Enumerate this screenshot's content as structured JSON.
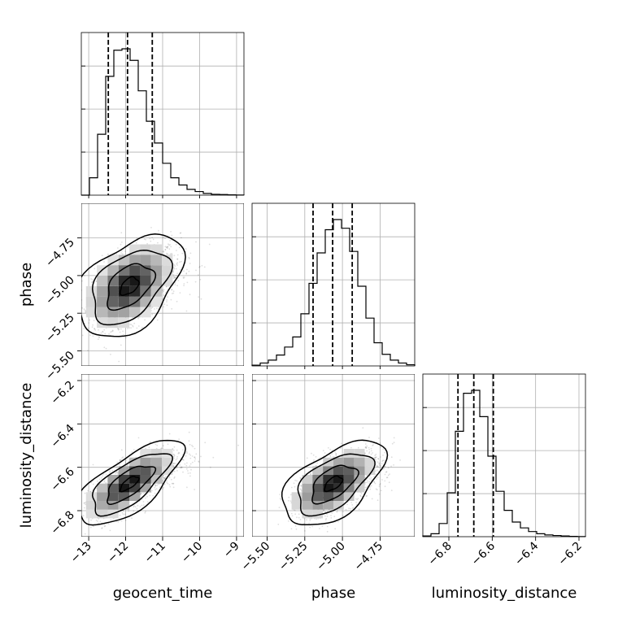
{
  "chart_data": {
    "type": "corner",
    "parameters": [
      "geocent_time",
      "phase",
      "luminosity_distance"
    ],
    "axis_labels": {
      "x": [
        "geocent_time",
        "phase",
        "luminosity_distance"
      ],
      "y": [
        "phase",
        "luminosity_distance"
      ]
    },
    "grid": true,
    "ranges": {
      "geocent_time": [
        -13.2,
        -8.8
      ],
      "phase": [
        -5.6,
        -4.52
      ],
      "luminosity_distance": [
        -6.92,
        -6.17
      ]
    },
    "ticks": {
      "geocent_time": {
        "values": [
          -13,
          -12,
          -11,
          -10,
          -9
        ],
        "labels": [
          "−13",
          "−12",
          "−11",
          "−10",
          "−9"
        ]
      },
      "phase": {
        "values": [
          -5.5,
          -5.25,
          -5.0,
          -4.75
        ],
        "labels": [
          "−5.50",
          "−5.25",
          "−5.00",
          "−4.75"
        ]
      },
      "luminosity_distance": {
        "values": [
          -6.8,
          -6.6,
          -6.4,
          -6.2
        ],
        "labels": [
          "−6.8",
          "−6.6",
          "−6.4",
          "−6.2"
        ]
      }
    },
    "quantiles": {
      "geocent_time": [
        -12.47,
        -11.95,
        -11.28
      ],
      "phase": [
        -5.195,
        -5.065,
        -4.935
      ],
      "luminosity_distance": [
        -6.758,
        -6.685,
        -6.595
      ]
    },
    "histograms": {
      "geocent_time": {
        "edges": [
          -13.2,
          -8.8
        ],
        "counts": [
          0,
          0.12,
          0.42,
          0.82,
          1.0,
          1.01,
          0.93,
          0.72,
          0.51,
          0.36,
          0.22,
          0.12,
          0.07,
          0.04,
          0.025,
          0.012,
          0.006,
          0.004,
          0.002,
          0.001
        ]
      },
      "phase": {
        "edges": [
          -5.6,
          -4.52
        ],
        "counts": [
          0.005,
          0.02,
          0.04,
          0.075,
          0.13,
          0.2,
          0.36,
          0.57,
          0.78,
          0.94,
          1.01,
          0.95,
          0.79,
          0.55,
          0.33,
          0.16,
          0.08,
          0.04,
          0.02,
          0.008
        ]
      },
      "luminosity_distance": {
        "edges": [
          -6.92,
          -6.17
        ],
        "counts": [
          0.005,
          0.02,
          0.09,
          0.3,
          0.72,
          0.98,
          1.0,
          0.82,
          0.55,
          0.31,
          0.18,
          0.1,
          0.06,
          0.035,
          0.02,
          0.012,
          0.008,
          0.005,
          0.002,
          0.001
        ]
      }
    },
    "scatter_panels": [
      {
        "x": "geocent_time",
        "y": "phase",
        "mean": [
          -11.9,
          -5.07
        ],
        "sd": [
          0.55,
          0.13
        ],
        "rho": 0.45
      },
      {
        "x": "geocent_time",
        "y": "luminosity_distance",
        "mean": [
          -11.9,
          -6.675
        ],
        "sd": [
          0.55,
          0.075
        ],
        "rho": 0.7
      },
      {
        "x": "phase",
        "y": "luminosity_distance",
        "mean": [
          -5.06,
          -6.675
        ],
        "sd": [
          0.13,
          0.075
        ],
        "rho": 0.55
      }
    ]
  }
}
